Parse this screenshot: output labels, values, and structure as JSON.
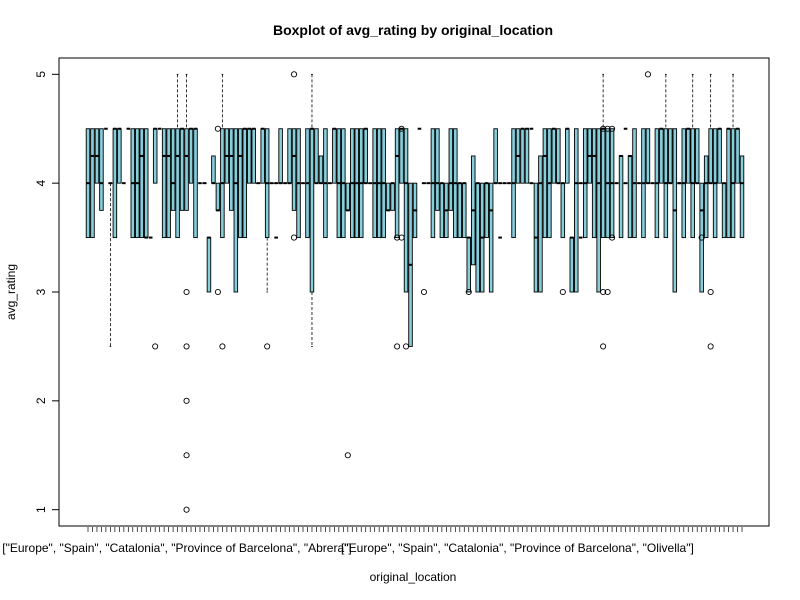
{
  "chart_data": {
    "type": "boxplot",
    "title": "Boxplot of avg_rating by original_location",
    "xlabel": "original_location",
    "ylabel": "avg_rating",
    "ylim": [
      0.85,
      5.15
    ],
    "y_ticks": [
      1,
      2,
      3,
      4,
      5
    ],
    "n_categories": 147,
    "box_fill": "#87CEDB",
    "visible_category_labels": [
      {
        "index": 0,
        "text": "[\"Europe\", \"Spain\", \"Catalonia\", \"Province of Barcelona\", \"Abrera\"]"
      },
      {
        "index": 76,
        "text": "[\"Europe\", \"Spain\", \"Catalonia\", \"Province of Barcelona\", \"Olivella\"]"
      }
    ],
    "series": [
      {
        "i": 0,
        "q1": 3.5,
        "med": 4,
        "q3": 4.5
      },
      {
        "i": 1,
        "q1": 3.5,
        "med": 4.25,
        "q3": 4.5
      },
      {
        "i": 2,
        "q1": 4,
        "med": 4.25,
        "q3": 4.5
      },
      {
        "i": 3,
        "q1": 3.75,
        "med": 4.0,
        "q3": 4.5
      },
      {
        "i": 5,
        "q1": 4,
        "med": 4,
        "q3": 4,
        "wlo": 2.5
      },
      {
        "i": 6,
        "q1": 3.5,
        "med": 4.5,
        "q3": 4.5
      },
      {
        "i": 7,
        "q1": 4,
        "med": 4.5,
        "q3": 4.5
      },
      {
        "i": 10,
        "q1": 3.5,
        "med": 4,
        "q3": 4.5
      },
      {
        "i": 11,
        "q1": 3.5,
        "med": 4,
        "q3": 4.5
      },
      {
        "i": 12,
        "q1": 3.5,
        "med": 4.25,
        "q3": 4.5
      },
      {
        "i": 13,
        "q1": 3.5,
        "med": 3.5,
        "q3": 4.5
      },
      {
        "i": 15,
        "q1": 4,
        "med": 4.5,
        "q3": 4.5,
        "out": [
          2.5
        ]
      },
      {
        "i": 17,
        "q1": 3.5,
        "med": 4.25,
        "q3": 4.5
      },
      {
        "i": 18,
        "q1": 3.5,
        "med": 4.25,
        "q3": 4.5
      },
      {
        "i": 19,
        "q1": 3.75,
        "med": 4.0,
        "q3": 4.5
      },
      {
        "i": 20,
        "q1": 3.5,
        "med": 4.25,
        "q3": 4.5,
        "whi": 5
      },
      {
        "i": 21,
        "q1": 3.75,
        "med": 4.5,
        "q3": 4.5
      },
      {
        "i": 22,
        "q1": 3.75,
        "med": 4.25,
        "q3": 4.5,
        "whi": 5,
        "out": [
          3,
          2.5,
          2,
          1.5,
          1
        ]
      },
      {
        "i": 23,
        "q1": 4,
        "med": 4.5,
        "q3": 4.5
      },
      {
        "i": 24,
        "q1": 3.5,
        "med": 4.5,
        "q3": 4.5
      },
      {
        "i": 26,
        "q1": 4,
        "med": 4,
        "q3": 4
      },
      {
        "i": 27,
        "q1": 3.0,
        "med": 3.5,
        "q3": 3.5
      },
      {
        "i": 28,
        "q1": 4,
        "med": 4,
        "q3": 4.25
      },
      {
        "i": 29,
        "q1": 3.75,
        "med": 3.75,
        "q3": 4.0,
        "out": [
          4.5,
          3.0
        ]
      },
      {
        "i": 30,
        "q1": 3.5,
        "med": 4,
        "q3": 4.5,
        "whi": 5,
        "out": [
          2.5
        ]
      },
      {
        "i": 31,
        "q1": 4,
        "med": 4.25,
        "q3": 4.5
      },
      {
        "i": 32,
        "q1": 3.75,
        "med": 4.25,
        "q3": 4.5
      },
      {
        "i": 33,
        "q1": 3.0,
        "med": 4,
        "q3": 4.5
      },
      {
        "i": 34,
        "q1": 3.5,
        "med": 4.25,
        "q3": 4.5
      },
      {
        "i": 35,
        "q1": 3.5,
        "med": 4.5,
        "q3": 4.5
      },
      {
        "i": 36,
        "q1": 4,
        "med": 4.5,
        "q3": 4.5
      },
      {
        "i": 37,
        "q1": 4,
        "med": 4.5,
        "q3": 4.5
      },
      {
        "i": 38,
        "q1": 4,
        "med": 4,
        "q3": 4
      },
      {
        "i": 39,
        "q1": 4,
        "med": 4.5,
        "q3": 4.5
      },
      {
        "i": 40,
        "q1": 3.5,
        "med": 4,
        "q3": 4.5,
        "wlo": 3.0,
        "out": [
          2.5
        ]
      },
      {
        "i": 41,
        "q1": 4,
        "med": 4,
        "q3": 4
      },
      {
        "i": 42,
        "q1": 4,
        "med": 4,
        "q3": 4
      },
      {
        "i": 43,
        "q1": 4,
        "med": 4,
        "q3": 4.5
      },
      {
        "i": 44,
        "q1": 4,
        "med": 4,
        "q3": 4
      },
      {
        "i": 45,
        "q1": 4,
        "med": 4,
        "q3": 4.5
      },
      {
        "i": 46,
        "q1": 3.75,
        "med": 4.25,
        "q3": 4.5,
        "out": [
          5,
          3.5
        ]
      },
      {
        "i": 47,
        "q1": 3.5,
        "med": 4,
        "q3": 4.5
      },
      {
        "i": 48,
        "q1": 4,
        "med": 4,
        "q3": 4
      },
      {
        "i": 49,
        "q1": 3.5,
        "med": 4,
        "q3": 4.5
      },
      {
        "i": 50,
        "q1": 3.0,
        "med": 4.5,
        "q3": 4.5,
        "wlo": 2.5,
        "whi": 5
      },
      {
        "i": 51,
        "q1": 4,
        "med": 4,
        "q3": 4.5
      },
      {
        "i": 52,
        "q1": 4.0,
        "med": 4.0,
        "q3": 4.25
      },
      {
        "i": 53,
        "q1": 3.5,
        "med": 4,
        "q3": 4.5
      },
      {
        "i": 54,
        "q1": 4,
        "med": 4,
        "q3": 4
      },
      {
        "i": 55,
        "q1": 4,
        "med": 4.5,
        "q3": 4.5
      },
      {
        "i": 56,
        "q1": 3.5,
        "med": 4,
        "q3": 4.5
      },
      {
        "i": 57,
        "q1": 3.5,
        "med": 4,
        "q3": 4.5
      },
      {
        "i": 58,
        "q1": 3.75,
        "med": 3.75,
        "q3": 4.0,
        "out": [
          1.5
        ]
      },
      {
        "i": 59,
        "q1": 3.5,
        "med": 4,
        "q3": 4.5
      },
      {
        "i": 60,
        "q1": 3.5,
        "med": 4,
        "q3": 4.5
      },
      {
        "i": 61,
        "q1": 3.5,
        "med": 4,
        "q3": 4.5
      },
      {
        "i": 62,
        "q1": 4,
        "med": 4,
        "q3": 4.5
      },
      {
        "i": 63,
        "q1": 4,
        "med": 4,
        "q3": 4
      },
      {
        "i": 64,
        "q1": 3.5,
        "med": 4,
        "q3": 4.5
      },
      {
        "i": 65,
        "q1": 3.5,
        "med": 4,
        "q3": 4.5
      },
      {
        "i": 66,
        "q1": 3.5,
        "med": 4,
        "q3": 4.5
      },
      {
        "i": 67,
        "q1": 3.75,
        "med": 3.75,
        "q3": 4.0
      },
      {
        "i": 68,
        "q1": 3.75,
        "med": 4,
        "q3": 4.0
      },
      {
        "i": 69,
        "q1": 3.5,
        "med": 4.25,
        "q3": 4.5,
        "out": [
          3.5,
          2.5
        ]
      },
      {
        "i": 70,
        "q1": 4,
        "med": 4.5,
        "q3": 4.5,
        "out": [
          4.5,
          3.5
        ]
      },
      {
        "i": 71,
        "q1": 3.0,
        "med": 4,
        "q3": 4.5,
        "out": [
          2.5
        ]
      },
      {
        "i": 72,
        "q1": 2.5,
        "med": 3.25,
        "q3": 4.0
      },
      {
        "i": 73,
        "q1": 3.5,
        "med": 3.75,
        "q3": 4.0
      },
      {
        "i": 75,
        "q1": 4,
        "med": 4,
        "q3": 4,
        "out": [
          3.0
        ]
      },
      {
        "i": 76,
        "q1": 4,
        "med": 4,
        "q3": 4
      },
      {
        "i": 77,
        "q1": 3.5,
        "med": 4,
        "q3": 4.5
      },
      {
        "i": 78,
        "q1": 3.75,
        "med": 4,
        "q3": 4.5
      },
      {
        "i": 79,
        "q1": 3.5,
        "med": 4,
        "q3": 4.0
      },
      {
        "i": 80,
        "q1": 3.5,
        "med": 3.75,
        "q3": 4.0
      },
      {
        "i": 81,
        "q1": 3.75,
        "med": 4,
        "q3": 4.5
      },
      {
        "i": 82,
        "q1": 3.5,
        "med": 4,
        "q3": 4.5
      },
      {
        "i": 83,
        "q1": 3.5,
        "med": 4,
        "q3": 4.0
      },
      {
        "i": 84,
        "q1": 3.5,
        "med": 4,
        "q3": 4.0
      },
      {
        "i": 85,
        "q1": 3.0,
        "med": 3.5,
        "q3": 3.5,
        "out": [
          3.0
        ]
      },
      {
        "i": 86,
        "q1": 3.25,
        "med": 3.75,
        "q3": 4.25
      },
      {
        "i": 87,
        "q1": 3.0,
        "med": 4,
        "q3": 4.0
      },
      {
        "i": 88,
        "q1": 3.0,
        "med": 3.5,
        "q3": 4.0
      },
      {
        "i": 89,
        "q1": 3.5,
        "med": 4,
        "q3": 4.0
      },
      {
        "i": 90,
        "q1": 3.0,
        "med": 3.75,
        "q3": 4.0
      },
      {
        "i": 91,
        "q1": 4,
        "med": 4,
        "q3": 4.5
      },
      {
        "i": 92,
        "q1": 4,
        "med": 4,
        "q3": 4
      },
      {
        "i": 93,
        "q1": 4,
        "med": 4,
        "q3": 4
      },
      {
        "i": 94,
        "q1": 4,
        "med": 4,
        "q3": 4
      },
      {
        "i": 95,
        "q1": 3.5,
        "med": 4,
        "q3": 4.5
      },
      {
        "i": 96,
        "q1": 4,
        "med": 4.25,
        "q3": 4.5
      },
      {
        "i": 97,
        "q1": 4,
        "med": 4.5,
        "q3": 4.5
      },
      {
        "i": 98,
        "q1": 4,
        "med": 4.5,
        "q3": 4.5
      },
      {
        "i": 99,
        "q1": 4,
        "med": 4,
        "q3": 4
      },
      {
        "i": 100,
        "q1": 3.0,
        "med": 3.5,
        "q3": 4.0
      },
      {
        "i": 101,
        "q1": 3.0,
        "med": 4,
        "q3": 4.25
      },
      {
        "i": 102,
        "q1": 3.5,
        "med": 4.25,
        "q3": 4.5
      },
      {
        "i": 103,
        "q1": 3.5,
        "med": 4,
        "q3": 4.5
      },
      {
        "i": 104,
        "q1": 4,
        "med": 4.5,
        "q3": 4.5
      },
      {
        "i": 105,
        "q1": 4,
        "med": 4,
        "q3": 4.5
      },
      {
        "i": 106,
        "q1": 3.5,
        "med": 4,
        "q3": 4.0,
        "out": [
          3.0
        ]
      },
      {
        "i": 107,
        "q1": 4,
        "med": 4.5,
        "q3": 4.5
      },
      {
        "i": 108,
        "q1": 3.0,
        "med": 3.5,
        "q3": 3.5
      },
      {
        "i": 109,
        "q1": 3.0,
        "med": 4,
        "q3": 4.5
      },
      {
        "i": 110,
        "q1": 4,
        "med": 4,
        "q3": 4
      },
      {
        "i": 111,
        "q1": 3.5,
        "med": 4,
        "q3": 4.5
      },
      {
        "i": 112,
        "q1": 4.0,
        "med": 4.25,
        "q3": 4.5
      },
      {
        "i": 113,
        "q1": 3.5,
        "med": 4.25,
        "q3": 4.5
      },
      {
        "i": 114,
        "q1": 3.0,
        "med": 4,
        "q3": 4.5
      },
      {
        "i": 115,
        "q1": 3.5,
        "med": 4.5,
        "q3": 4.5,
        "whi": 5,
        "out": [
          4.5,
          3.0,
          2.5
        ]
      },
      {
        "i": 116,
        "q1": 3.5,
        "med": 4,
        "q3": 4.5,
        "out": [
          4.5,
          3.0
        ]
      },
      {
        "i": 117,
        "q1": 3.5,
        "med": 4,
        "q3": 4.5,
        "out": [
          4.5,
          3.5
        ]
      },
      {
        "i": 118,
        "q1": 4,
        "med": 4,
        "q3": 4
      },
      {
        "i": 119,
        "q1": 3.5,
        "med": 4.25,
        "q3": 4.25
      },
      {
        "i": 120,
        "q1": 4,
        "med": 4,
        "q3": 4
      },
      {
        "i": 121,
        "q1": 3.5,
        "med": 4.25,
        "q3": 4.25
      },
      {
        "i": 122,
        "q1": 3.5,
        "med": 4,
        "q3": 4.5
      },
      {
        "i": 123,
        "q1": 4,
        "med": 4,
        "q3": 4
      },
      {
        "i": 124,
        "q1": 3.5,
        "med": 4,
        "q3": 4.5
      },
      {
        "i": 125,
        "q1": 4,
        "med": 4,
        "q3": 4.5,
        "out": [
          5
        ]
      },
      {
        "i": 126,
        "q1": 4,
        "med": 4,
        "q3": 4
      },
      {
        "i": 127,
        "q1": 3.5,
        "med": 4,
        "q3": 4.5
      },
      {
        "i": 128,
        "q1": 4,
        "med": 4.5,
        "q3": 4.5
      },
      {
        "i": 129,
        "q1": 3.5,
        "med": 4,
        "q3": 4.5,
        "whi": 5
      },
      {
        "i": 130,
        "q1": 4,
        "med": 4,
        "q3": 4.5
      },
      {
        "i": 131,
        "q1": 3.0,
        "med": 3.75,
        "q3": 4.5
      },
      {
        "i": 132,
        "q1": 4,
        "med": 4,
        "q3": 4
      },
      {
        "i": 133,
        "q1": 3.5,
        "med": 4,
        "q3": 4.5
      },
      {
        "i": 134,
        "q1": 4,
        "med": 4.5,
        "q3": 4.5
      },
      {
        "i": 135,
        "q1": 3.5,
        "med": 4,
        "q3": 4.5,
        "whi": 5
      },
      {
        "i": 136,
        "q1": 4,
        "med": 4,
        "q3": 4.5
      },
      {
        "i": 137,
        "q1": 3.0,
        "med": 3.75,
        "q3": 4.0,
        "out": [
          3.5
        ]
      },
      {
        "i": 138,
        "q1": 3.5,
        "med": 4,
        "q3": 4.25
      },
      {
        "i": 139,
        "q1": 4,
        "med": 4,
        "q3": 4.5,
        "whi": 5,
        "out": [
          3.0,
          2.5
        ]
      },
      {
        "i": 140,
        "q1": 3.5,
        "med": 4,
        "q3": 4.5
      },
      {
        "i": 141,
        "q1": 4,
        "med": 4.5,
        "q3": 4.5
      },
      {
        "i": 142,
        "q1": 3.5,
        "med": 4,
        "q3": 4.0
      },
      {
        "i": 143,
        "q1": 3.5,
        "med": 4.5,
        "q3": 4.5
      },
      {
        "i": 144,
        "q1": 3.5,
        "med": 4,
        "q3": 4.5,
        "whi": 5
      },
      {
        "i": 145,
        "q1": 4,
        "med": 4.5,
        "q3": 4.5
      },
      {
        "i": 146,
        "q1": 3.5,
        "med": 4,
        "q3": 4.25
      }
    ],
    "dot_points": [
      {
        "i": 4,
        "v": 4.5
      },
      {
        "i": 8,
        "v": 4.0
      },
      {
        "i": 9,
        "v": 4.5
      },
      {
        "i": 14,
        "v": 3.5
      },
      {
        "i": 16,
        "v": 4.5
      },
      {
        "i": 25,
        "v": 4.0
      },
      {
        "i": 74,
        "v": 4.5
      },
      {
        "i": 42,
        "v": 3.5
      },
      {
        "i": 62,
        "v": 4.5
      },
      {
        "i": 92,
        "v": 3.5
      },
      {
        "i": 99,
        "v": 4.5
      },
      {
        "i": 110,
        "v": 3.5
      },
      {
        "i": 120,
        "v": 4.5
      },
      {
        "i": 132,
        "v": 4.0
      }
    ]
  }
}
